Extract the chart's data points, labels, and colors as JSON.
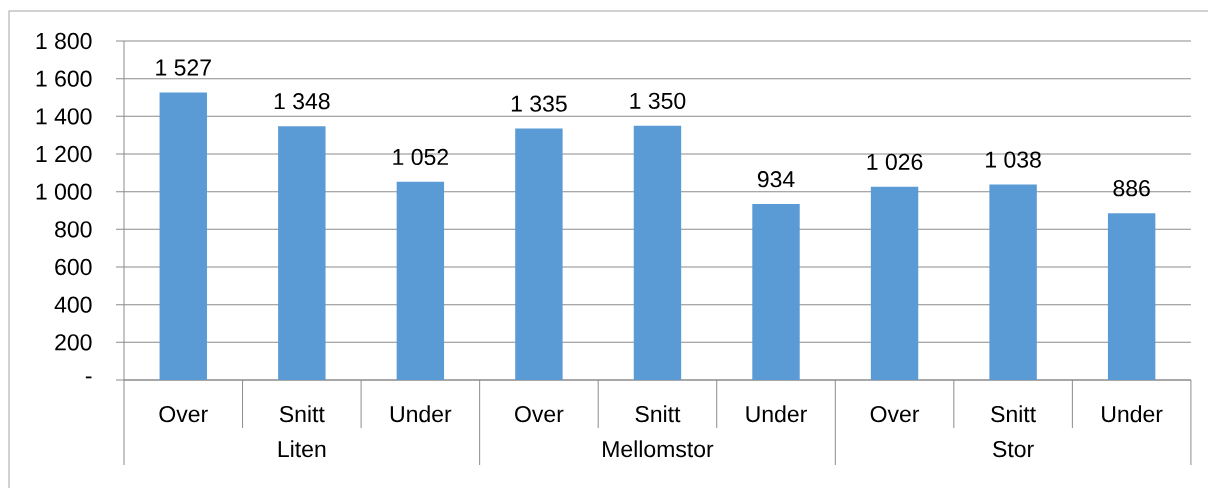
{
  "chart_data": {
    "type": "bar",
    "categories": [
      "Over",
      "Snitt",
      "Under",
      "Over",
      "Snitt",
      "Under",
      "Over",
      "Snitt",
      "Under"
    ],
    "values": [
      1527,
      1348,
      1052,
      1335,
      1350,
      934,
      1026,
      1038,
      886
    ],
    "value_labels": [
      "1 527",
      "1 348",
      "1 052",
      "1 335",
      "1 350",
      "934",
      "1 026",
      "1 038",
      "886"
    ],
    "color": "#5b9bd5",
    "ylim": [
      0,
      1800
    ],
    "yticks": [
      {
        "value": 0,
        "label": "-"
      },
      200,
      400,
      600,
      800,
      {
        "value": 1000,
        "label": "1 000"
      },
      {
        "value": 1200,
        "label": "1 200"
      },
      {
        "value": 1400,
        "label": "1 400"
      },
      {
        "value": 1600,
        "label": "1 600"
      },
      {
        "value": 1800,
        "label": "1 800"
      }
    ],
    "grid": "y",
    "annotations": [
      "Liten",
      "Mellomstor",
      "Stor"
    ]
  }
}
